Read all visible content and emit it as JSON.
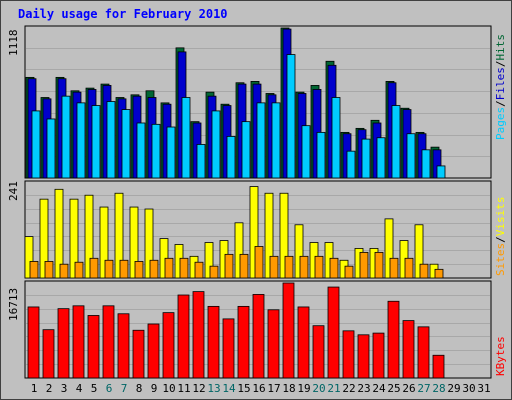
{
  "title": "Daily usage for February 2010",
  "colors": {
    "hits": "#006633",
    "files": "#0000cc",
    "pages": "#00ccff",
    "visits": "#ffff00",
    "sites": "#ff9900",
    "kbytes": "#ff0000",
    "weekend_day": "#006666"
  },
  "chart_data": [
    {
      "type": "bar",
      "title": "Daily usage for February 2010",
      "legend": [
        "Pages",
        "Files",
        "Hits"
      ],
      "y_tick": "1118",
      "ylim": [
        0,
        1118
      ],
      "categories": [
        "1",
        "2",
        "3",
        "4",
        "5",
        "6",
        "7",
        "8",
        "9",
        "10",
        "11",
        "12",
        "13",
        "14",
        "15",
        "16",
        "17",
        "18",
        "19",
        "20",
        "21",
        "22",
        "23",
        "24",
        "25",
        "26",
        "27",
        "28",
        "29",
        "30",
        "31"
      ],
      "highlight_days": [
        "6",
        "7",
        "13",
        "14",
        "20",
        "21",
        "27",
        "28"
      ],
      "series": [
        {
          "name": "Hits",
          "values": [
            750,
            600,
            750,
            650,
            670,
            700,
            600,
            620,
            650,
            560,
            970,
            420,
            640,
            550,
            710,
            720,
            630,
            1118,
            640,
            690,
            870,
            340,
            370,
            430,
            720,
            520,
            340,
            230,
            null,
            null,
            null
          ]
        },
        {
          "name": "Files",
          "values": [
            740,
            590,
            740,
            640,
            660,
            690,
            590,
            610,
            600,
            550,
            940,
            410,
            610,
            540,
            700,
            700,
            620,
            1110,
            630,
            660,
            840,
            330,
            360,
            410,
            710,
            510,
            330,
            210,
            null,
            null,
            null
          ]
        },
        {
          "name": "Pages",
          "values": [
            500,
            440,
            610,
            560,
            540,
            570,
            510,
            410,
            400,
            380,
            600,
            250,
            500,
            310,
            420,
            560,
            560,
            920,
            390,
            340,
            600,
            200,
            290,
            300,
            540,
            330,
            210,
            90,
            null,
            null,
            null
          ]
        }
      ]
    },
    {
      "type": "bar",
      "legend": [
        "Sites",
        "Visits"
      ],
      "y_tick": "241",
      "ylim": [
        0,
        241
      ],
      "categories": [
        "1",
        "2",
        "3",
        "4",
        "5",
        "6",
        "7",
        "8",
        "9",
        "10",
        "11",
        "12",
        "13",
        "14",
        "15",
        "16",
        "17",
        "18",
        "19",
        "20",
        "21",
        "22",
        "23",
        "24",
        "25",
        "26",
        "27",
        "28",
        "29",
        "30",
        "31"
      ],
      "series": [
        {
          "name": "Visits",
          "values": [
            105,
            200,
            225,
            200,
            210,
            180,
            215,
            180,
            175,
            100,
            85,
            55,
            90,
            95,
            140,
            232,
            215,
            215,
            135,
            90,
            90,
            45,
            75,
            75,
            150,
            95,
            135,
            35,
            null,
            null,
            null
          ]
        },
        {
          "name": "Sites",
          "values": [
            42,
            42,
            35,
            40,
            50,
            45,
            45,
            42,
            45,
            50,
            50,
            40,
            30,
            60,
            60,
            80,
            55,
            55,
            55,
            55,
            50,
            30,
            65,
            65,
            50,
            50,
            35,
            22,
            null,
            null,
            null
          ]
        }
      ]
    },
    {
      "type": "bar",
      "legend": [
        "KBytes"
      ],
      "y_tick": "16713",
      "ylim": [
        0,
        16713
      ],
      "categories": [
        "1",
        "2",
        "3",
        "4",
        "5",
        "6",
        "7",
        "8",
        "9",
        "10",
        "11",
        "12",
        "13",
        "14",
        "15",
        "16",
        "17",
        "18",
        "19",
        "20",
        "21",
        "22",
        "23",
        "24",
        "25",
        "26",
        "27",
        "28",
        "29",
        "30",
        "31"
      ],
      "series": [
        {
          "name": "KBytes",
          "values": [
            12500,
            8500,
            12200,
            12700,
            11000,
            12700,
            11300,
            8400,
            9500,
            11500,
            14600,
            15200,
            12600,
            10400,
            12600,
            14700,
            12000,
            16713,
            12500,
            9200,
            16000,
            8300,
            7600,
            7900,
            13500,
            10100,
            9000,
            4000,
            null,
            null,
            null
          ]
        }
      ]
    }
  ]
}
